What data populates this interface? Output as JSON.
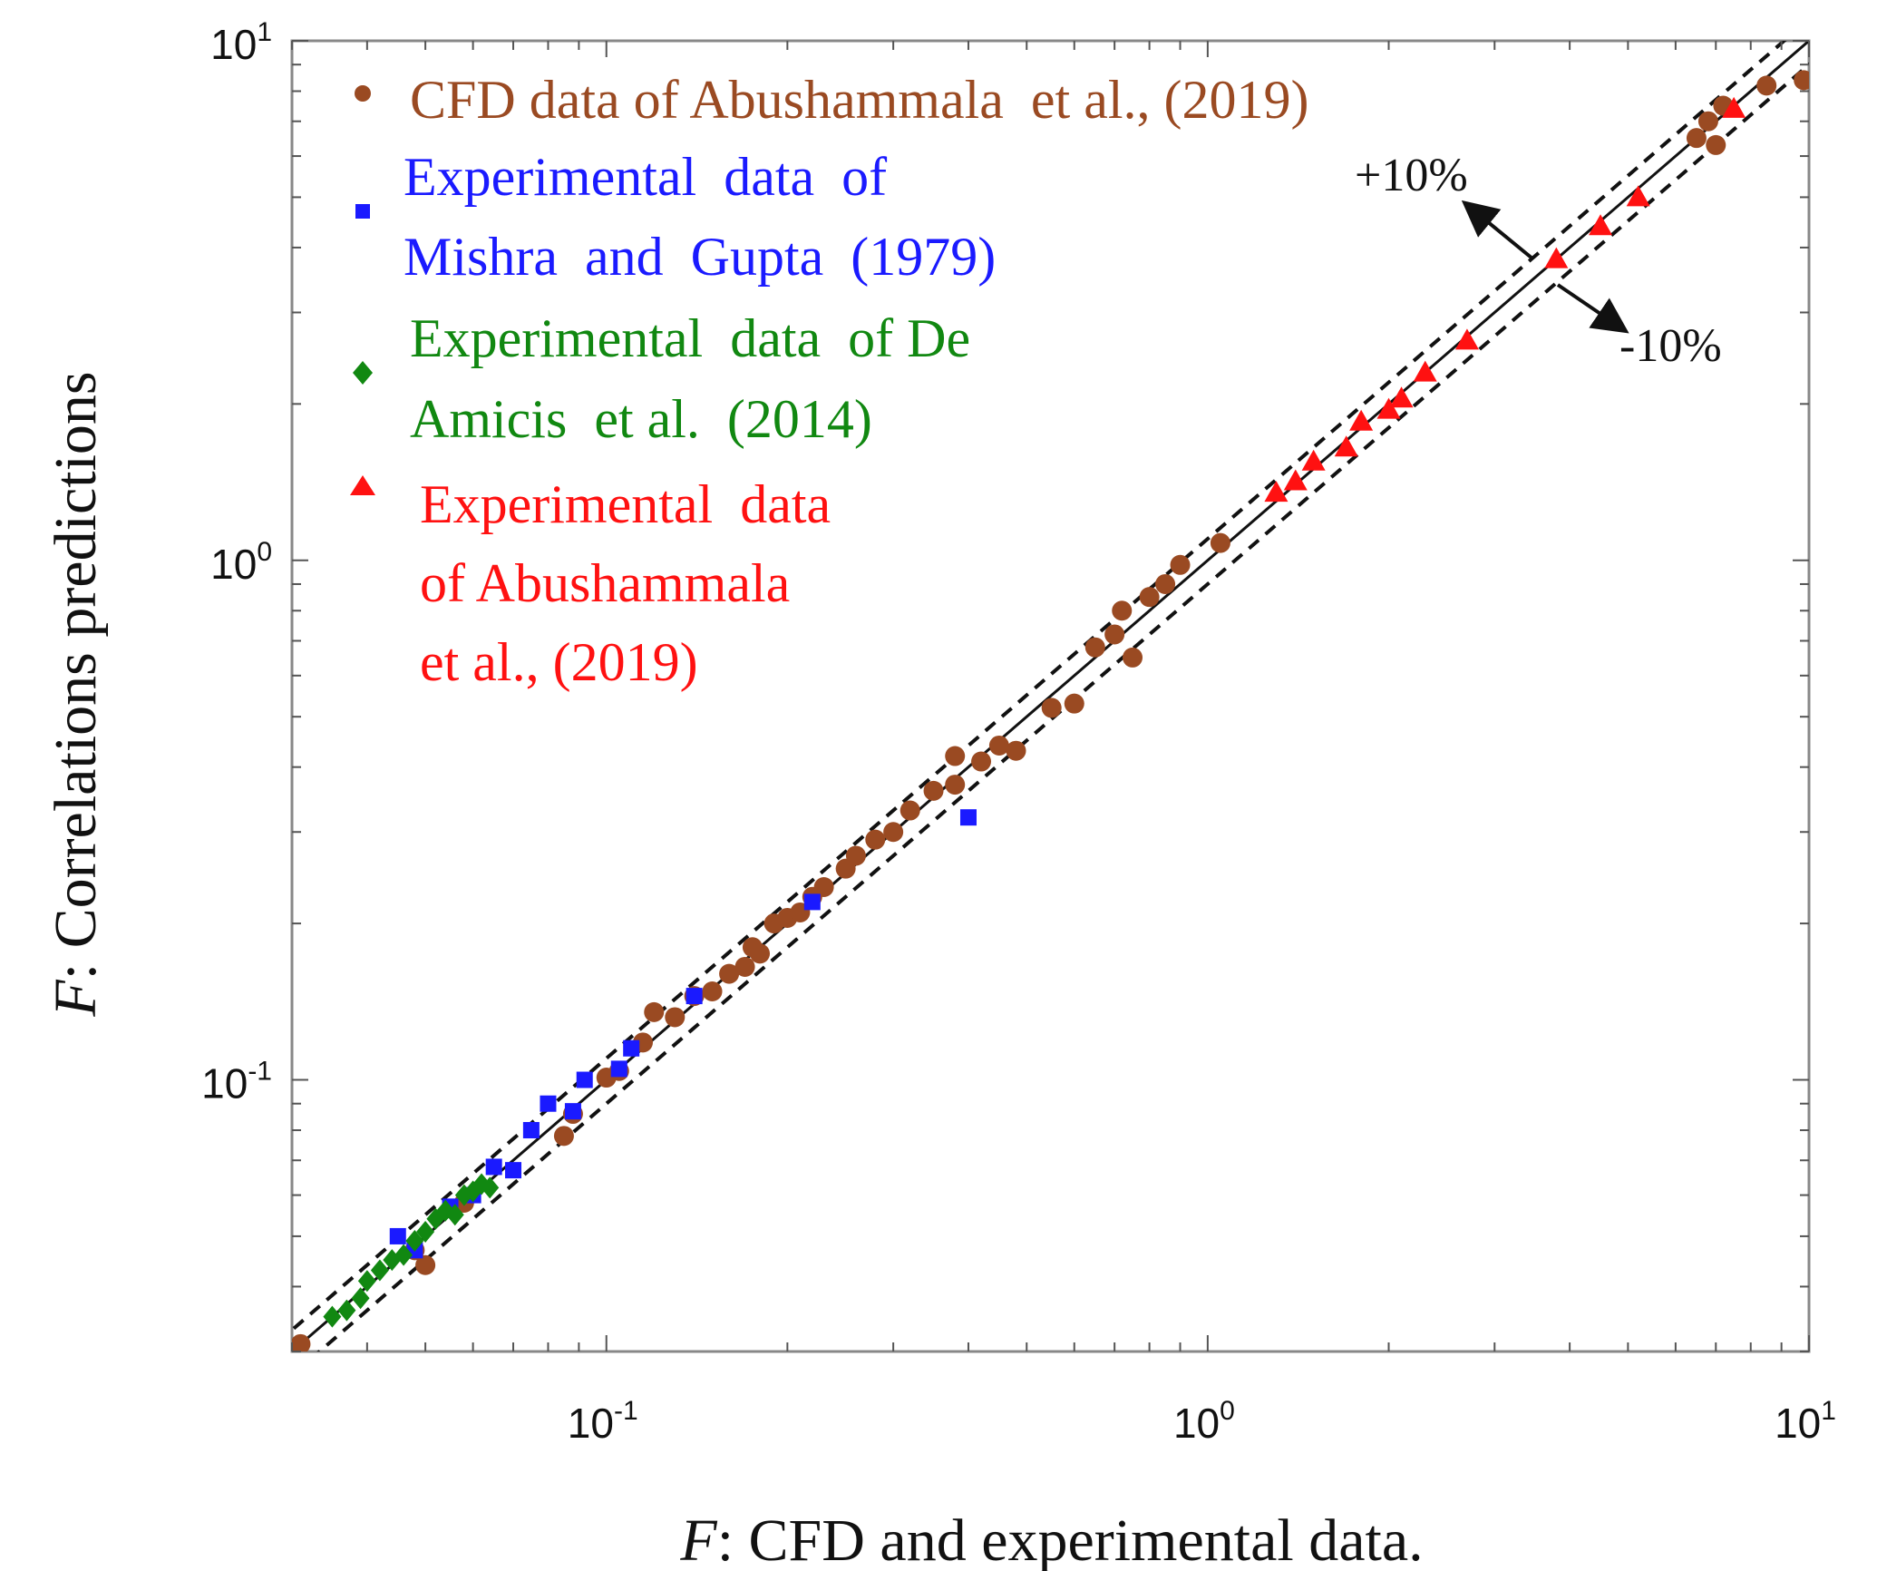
{
  "chart_data": {
    "type": "scatter",
    "title": "",
    "xlabel": {
      "italic": "F",
      "rest": ": CFD and experimental data."
    },
    "ylabel": {
      "italic": "F",
      "rest": ": Correlations predictions"
    },
    "xscale": "log",
    "yscale": "log",
    "xlim": [
      0.03,
      10
    ],
    "ylim": [
      0.03,
      10
    ],
    "x_ticks": [
      {
        "value": 0.1,
        "base": "10",
        "exp": "-1"
      },
      {
        "value": 1,
        "base": "10",
        "exp": "0"
      },
      {
        "value": 10,
        "base": "10",
        "exp": "1"
      }
    ],
    "y_ticks": [
      {
        "value": 0.1,
        "base": "10",
        "exp": "-1"
      },
      {
        "value": 1,
        "base": "10",
        "exp": "0"
      },
      {
        "value": 10,
        "base": "10",
        "exp": "1"
      }
    ],
    "grid": false,
    "legend_position": "top-left",
    "reference_lines": [
      {
        "name": "parity",
        "factor": 1.0,
        "style": "solid"
      },
      {
        "name": "+10%",
        "factor": 1.1,
        "style": "dashed",
        "label": "+10%"
      },
      {
        "name": "-10%",
        "factor": 0.9,
        "style": "dashed",
        "label": "-10%"
      }
    ],
    "series": [
      {
        "name": "CFD data of Abushammala et al., (2019)",
        "legend_lines": [
          "CFD data of Abushammala  et al., (2019)"
        ],
        "marker": "circle",
        "color": "#9a4a22",
        "points": [
          [
            0.031,
            0.031
          ],
          [
            0.048,
            0.047
          ],
          [
            0.05,
            0.044
          ],
          [
            0.058,
            0.058
          ],
          [
            0.085,
            0.078
          ],
          [
            0.088,
            0.086
          ],
          [
            0.1,
            0.101
          ],
          [
            0.105,
            0.104
          ],
          [
            0.115,
            0.118
          ],
          [
            0.12,
            0.135
          ],
          [
            0.13,
            0.132
          ],
          [
            0.14,
            0.145
          ],
          [
            0.15,
            0.148
          ],
          [
            0.16,
            0.16
          ],
          [
            0.17,
            0.165
          ],
          [
            0.175,
            0.18
          ],
          [
            0.18,
            0.175
          ],
          [
            0.19,
            0.2
          ],
          [
            0.2,
            0.205
          ],
          [
            0.21,
            0.21
          ],
          [
            0.22,
            0.225
          ],
          [
            0.23,
            0.235
          ],
          [
            0.25,
            0.255
          ],
          [
            0.26,
            0.27
          ],
          [
            0.28,
            0.29
          ],
          [
            0.3,
            0.3
          ],
          [
            0.32,
            0.33
          ],
          [
            0.35,
            0.36
          ],
          [
            0.38,
            0.37
          ],
          [
            0.42,
            0.41
          ],
          [
            0.45,
            0.44
          ],
          [
            0.48,
            0.43
          ],
          [
            0.38,
            0.42
          ],
          [
            0.55,
            0.52
          ],
          [
            0.6,
            0.53
          ],
          [
            0.65,
            0.68
          ],
          [
            0.7,
            0.72
          ],
          [
            0.72,
            0.8
          ],
          [
            0.75,
            0.65
          ],
          [
            0.8,
            0.85
          ],
          [
            0.85,
            0.9
          ],
          [
            0.9,
            0.98
          ],
          [
            1.05,
            1.08
          ],
          [
            6.5,
            6.5
          ],
          [
            6.8,
            7.0
          ],
          [
            7.0,
            6.3
          ],
          [
            7.2,
            7.5
          ],
          [
            8.5,
            8.2
          ],
          [
            9.8,
            8.4
          ]
        ]
      },
      {
        "name": "Experimental data of Mishra and Gupta (1979)",
        "legend_lines": [
          "Experimental  data  of",
          "Mishra  and  Gupta  (1979)"
        ],
        "marker": "square",
        "color": "#1a1aff",
        "points": [
          [
            0.045,
            0.05
          ],
          [
            0.048,
            0.047
          ],
          [
            0.055,
            0.057
          ],
          [
            0.06,
            0.06
          ],
          [
            0.065,
            0.068
          ],
          [
            0.07,
            0.067
          ],
          [
            0.075,
            0.08
          ],
          [
            0.08,
            0.09
          ],
          [
            0.088,
            0.087
          ],
          [
            0.092,
            0.1
          ],
          [
            0.105,
            0.105
          ],
          [
            0.11,
            0.115
          ],
          [
            0.14,
            0.145
          ],
          [
            0.22,
            0.22
          ],
          [
            0.4,
            0.32
          ]
        ]
      },
      {
        "name": "Experimental data of De Amicis et al. (2014)",
        "legend_lines": [
          "Experimental  data  of De",
          "Amicis  et al.  (2014)"
        ],
        "marker": "diamond",
        "color": "#118811",
        "points": [
          [
            0.035,
            0.035
          ],
          [
            0.037,
            0.036
          ],
          [
            0.039,
            0.038
          ],
          [
            0.04,
            0.041
          ],
          [
            0.042,
            0.043
          ],
          [
            0.044,
            0.045
          ],
          [
            0.046,
            0.046
          ],
          [
            0.048,
            0.049
          ],
          [
            0.05,
            0.051
          ],
          [
            0.052,
            0.054
          ],
          [
            0.054,
            0.056
          ],
          [
            0.056,
            0.055
          ],
          [
            0.058,
            0.06
          ],
          [
            0.06,
            0.061
          ],
          [
            0.062,
            0.063
          ],
          [
            0.064,
            0.062
          ]
        ]
      },
      {
        "name": "Experimental data of Abushammala et al., (2019)",
        "legend_lines": [
          "Experimental  data",
          "of Abushammala",
          "et al., (2019)"
        ],
        "marker": "triangle",
        "color": "#ff1111",
        "points": [
          [
            1.3,
            1.35
          ],
          [
            1.4,
            1.42
          ],
          [
            1.5,
            1.55
          ],
          [
            1.7,
            1.65
          ],
          [
            1.8,
            1.85
          ],
          [
            2.0,
            1.95
          ],
          [
            2.1,
            2.05
          ],
          [
            2.3,
            2.3
          ],
          [
            2.7,
            2.65
          ],
          [
            3.8,
            3.8
          ],
          [
            4.5,
            4.4
          ],
          [
            5.2,
            5.0
          ],
          [
            7.5,
            7.4
          ]
        ]
      }
    ]
  }
}
